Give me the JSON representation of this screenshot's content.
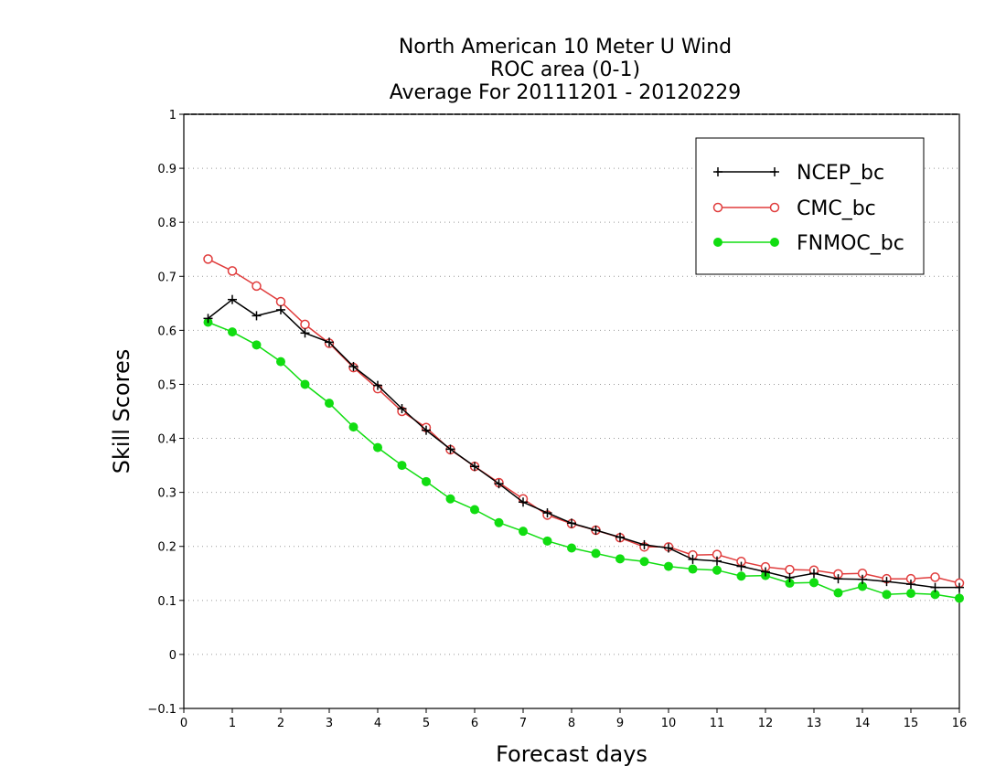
{
  "chart_data": {
    "type": "line",
    "title_lines": [
      "North American 10 Meter U Wind",
      "ROC area (0-1)",
      "Average For 20111201 - 20120229"
    ],
    "xlabel": "Forecast days",
    "ylabel": "Skill Scores",
    "xlim": [
      0,
      16
    ],
    "ylim": [
      -0.1,
      1
    ],
    "x_ticks": [
      0,
      1,
      2,
      3,
      4,
      5,
      6,
      7,
      8,
      9,
      10,
      11,
      12,
      13,
      14,
      15,
      16
    ],
    "x_tick_labels": [
      "0",
      "1",
      "2",
      "3",
      "4",
      "5",
      "6",
      "7",
      "8",
      "9",
      "10",
      "11",
      "12",
      "13",
      "14",
      "15",
      "16"
    ],
    "y_ticks": [
      -0.1,
      0,
      0.1,
      0.2,
      0.3,
      0.4,
      0.5,
      0.6,
      0.7,
      0.8,
      0.9,
      1
    ],
    "y_tick_labels": [
      "−0.1",
      "0",
      "0.1",
      "0.2",
      "0.3",
      "0.4",
      "0.5",
      "0.6",
      "0.7",
      "0.8",
      "0.9",
      "1"
    ],
    "grid": "horizontal dotted",
    "legend_position": "top-right",
    "x": [
      0.5,
      1,
      1.5,
      2,
      2.5,
      3,
      3.5,
      4,
      4.5,
      5,
      5.5,
      6,
      6.5,
      7,
      7.5,
      8,
      8.5,
      9,
      9.5,
      10,
      10.5,
      11,
      11.5,
      12,
      12.5,
      13,
      13.5,
      14,
      14.5,
      15,
      15.5,
      16
    ],
    "series": [
      {
        "name": "NCEP_bc",
        "color": "#000000",
        "marker": "plus",
        "values": [
          0.622,
          0.657,
          0.627,
          0.638,
          0.595,
          0.578,
          0.533,
          0.498,
          0.455,
          0.415,
          0.38,
          0.348,
          0.316,
          0.282,
          0.262,
          0.243,
          0.23,
          0.217,
          0.203,
          0.197,
          0.176,
          0.173,
          0.163,
          0.153,
          0.142,
          0.15,
          0.14,
          0.139,
          0.135,
          0.13,
          0.124,
          0.124
        ]
      },
      {
        "name": "CMC_bc",
        "color": "#e03c3c",
        "marker": "open-circle",
        "values": [
          0.732,
          0.71,
          0.682,
          0.653,
          0.611,
          0.576,
          0.531,
          0.492,
          0.45,
          0.42,
          0.379,
          0.348,
          0.318,
          0.288,
          0.258,
          0.242,
          0.23,
          0.216,
          0.199,
          0.199,
          0.184,
          0.185,
          0.172,
          0.162,
          0.157,
          0.156,
          0.149,
          0.15,
          0.14,
          0.14,
          0.143,
          0.132
        ]
      },
      {
        "name": "FNMOC_bc",
        "color": "#11dd11",
        "marker": "filled-circle",
        "values": [
          0.615,
          0.597,
          0.573,
          0.542,
          0.5,
          0.465,
          0.421,
          0.383,
          0.35,
          0.32,
          0.288,
          0.268,
          0.244,
          0.228,
          0.21,
          0.197,
          0.187,
          0.177,
          0.172,
          0.163,
          0.158,
          0.156,
          0.145,
          0.146,
          0.132,
          0.133,
          0.114,
          0.126,
          0.111,
          0.113,
          0.111,
          0.104
        ]
      }
    ]
  }
}
